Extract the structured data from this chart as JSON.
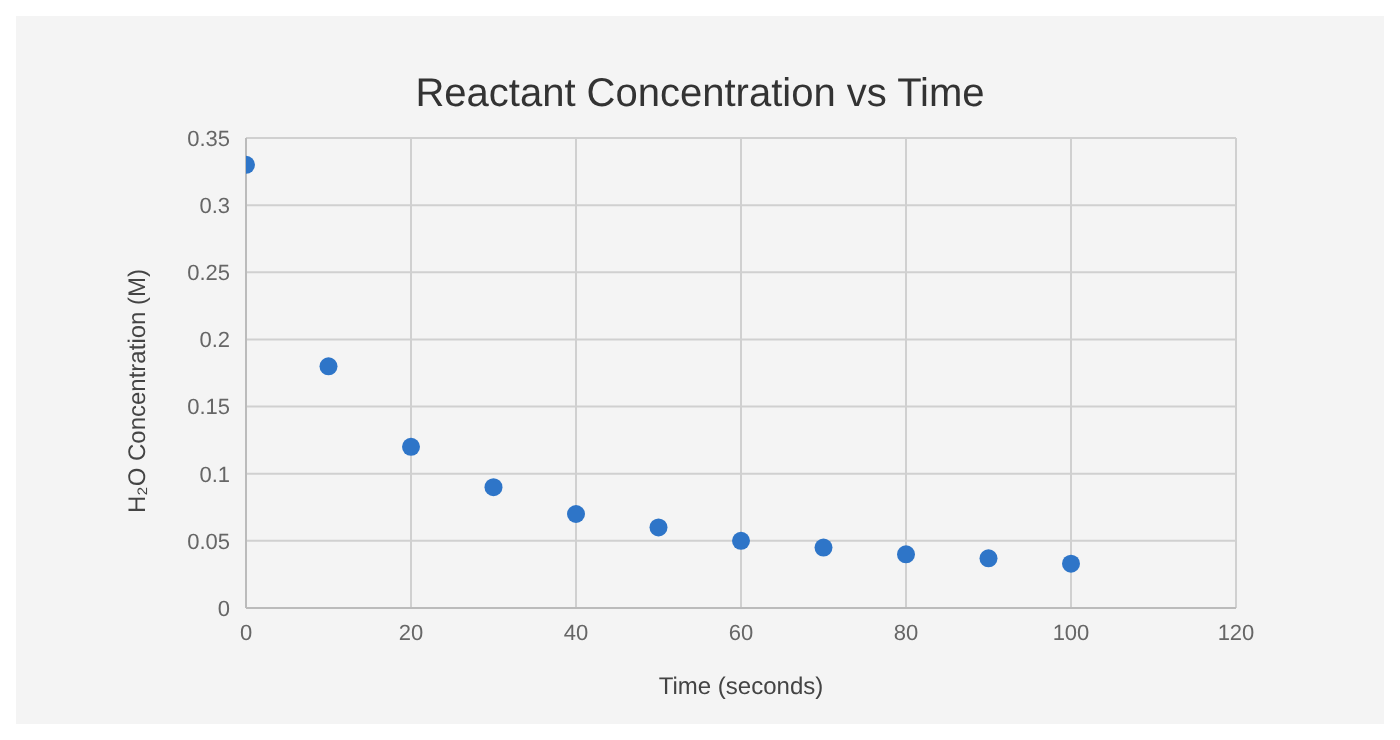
{
  "chart_data": {
    "type": "scatter",
    "title": "Reactant Concentration vs Time",
    "xlabel": "Time (seconds)",
    "ylabel": "H₂O Concentration (M)",
    "x": [
      0,
      10,
      20,
      30,
      40,
      50,
      60,
      70,
      80,
      90,
      100
    ],
    "series": [
      {
        "color": "#2e75c8",
        "values": [
          0.33,
          0.18,
          0.12,
          0.09,
          0.07,
          0.06,
          0.05,
          0.045,
          0.04,
          0.037,
          0.033
        ]
      }
    ],
    "xlim": [
      0,
      120
    ],
    "xticks": [
      0,
      20,
      40,
      60,
      80,
      100,
      120
    ],
    "ylim": [
      0,
      0.35
    ],
    "yticks": [
      0,
      0.05,
      0.1,
      0.15,
      0.2,
      0.25,
      0.3,
      0.35
    ],
    "grid": true,
    "marker": "circle"
  }
}
